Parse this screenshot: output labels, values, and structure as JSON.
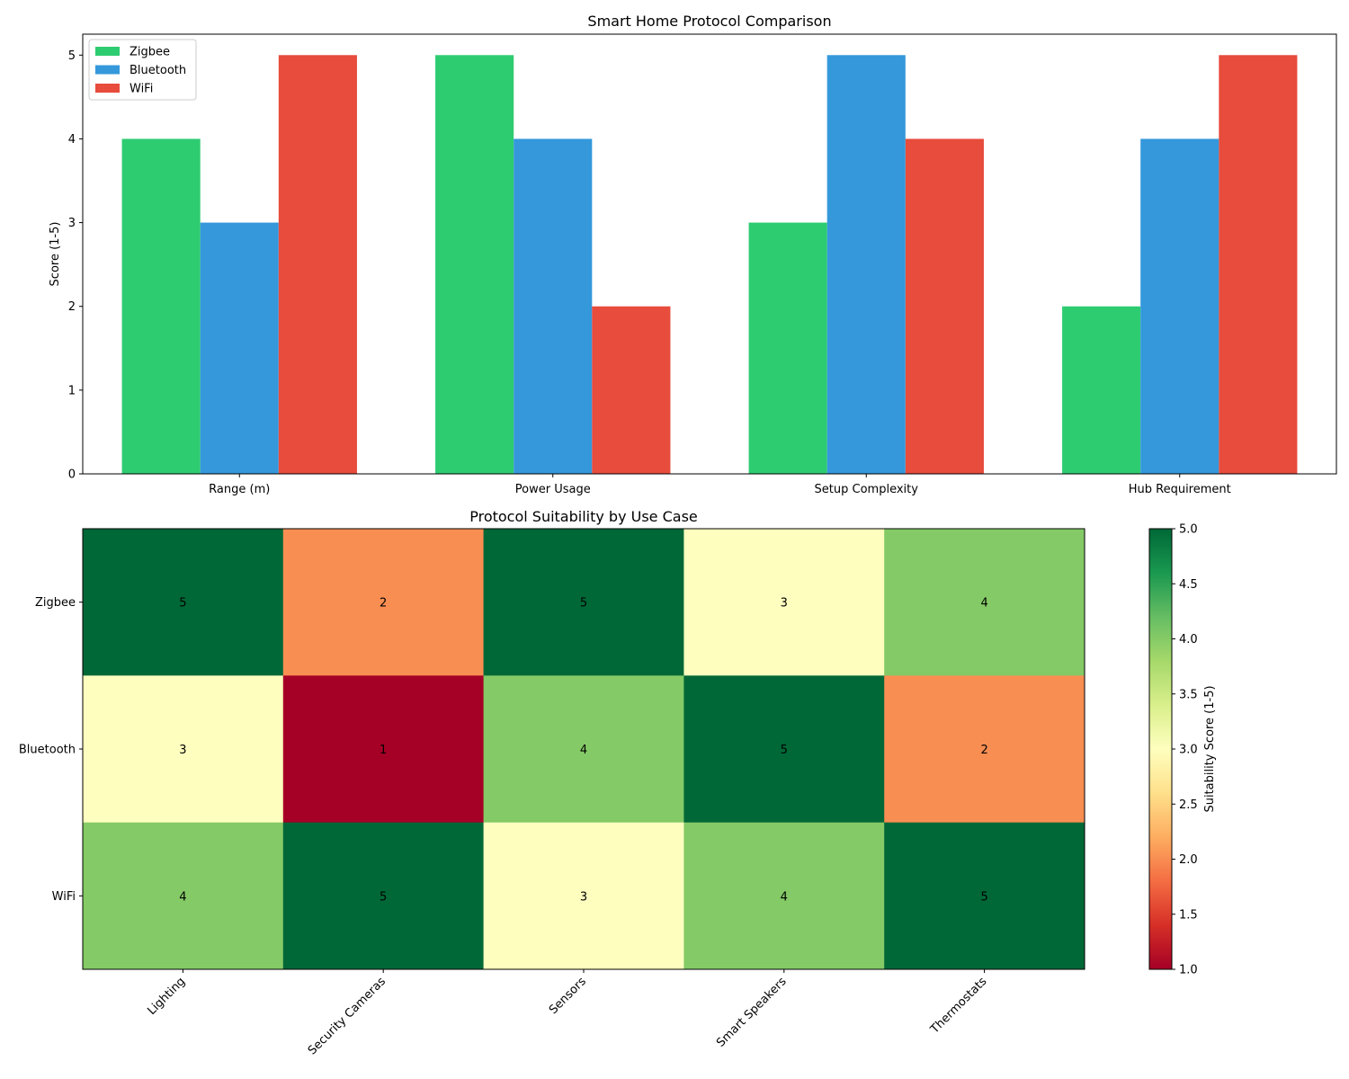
{
  "chart_data": [
    {
      "type": "bar",
      "title": "Smart Home Protocol Comparison",
      "xlabel": "",
      "ylabel": "Score (1-5)",
      "categories": [
        "Range (m)",
        "Power Usage",
        "Setup Complexity",
        "Hub Requirement"
      ],
      "series": [
        {
          "name": "Zigbee",
          "values": [
            4,
            5,
            3,
            2
          ],
          "color": "#2ecc71"
        },
        {
          "name": "Bluetooth",
          "values": [
            3,
            4,
            5,
            4
          ],
          "color": "#3498db"
        },
        {
          "name": "WiFi",
          "values": [
            5,
            2,
            4,
            5
          ],
          "color": "#e74c3c"
        }
      ],
      "ylim": [
        0,
        5.25
      ],
      "yticks": [
        "0",
        "1",
        "2",
        "3",
        "4",
        "5"
      ],
      "grid": false,
      "legend": "top-left"
    },
    {
      "type": "heatmap",
      "title": "Protocol Suitability by Use Case",
      "rows": [
        "Zigbee",
        "Bluetooth",
        "WiFi"
      ],
      "columns": [
        "Lighting",
        "Security Cameras",
        "Sensors",
        "Smart Speakers",
        "Thermostats"
      ],
      "values": [
        [
          5,
          2,
          5,
          3,
          4
        ],
        [
          3,
          1,
          4,
          5,
          2
        ],
        [
          4,
          5,
          3,
          4,
          5
        ]
      ],
      "colormap": "RdYlGn",
      "colorbar_label": "Suitability Score (1-5)",
      "colorbar_range": [
        1,
        5
      ],
      "colorbar_ticks": [
        "1.0",
        "1.5",
        "2.0",
        "2.5",
        "3.0",
        "3.5",
        "4.0",
        "4.5",
        "5.0"
      ],
      "cell_colors": {
        "1": "#a50026",
        "2": "#f88e52",
        "3": "#feffbe",
        "4": "#84ca66",
        "5": "#006837"
      },
      "colorbar_gradient": [
        "#a50026",
        "#d62f27",
        "#f46d43",
        "#fdad60",
        "#fee08b",
        "#feffbe",
        "#d9ef8b",
        "#a5d86a",
        "#66bd63",
        "#1a9850",
        "#006837"
      ]
    }
  ]
}
